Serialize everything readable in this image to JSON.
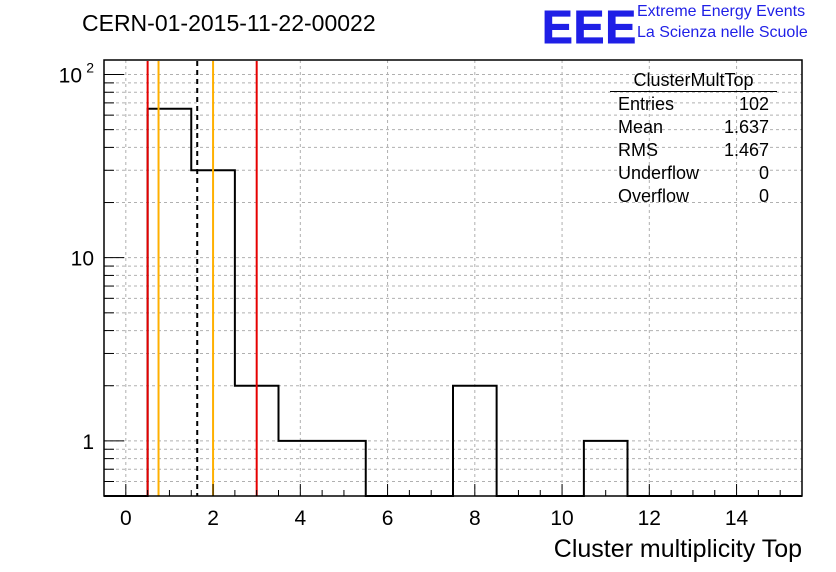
{
  "title": "CERN-01-2015-11-22-00022",
  "logo": {
    "letters": "EEE",
    "line1": "Extreme Energy Events",
    "line2": "La Scienza nelle Scuole",
    "color": "#1f1fe6"
  },
  "stats_box": {
    "name": "ClusterMultTop",
    "rows": [
      {
        "label": "Entries",
        "value": "102"
      },
      {
        "label": "Mean",
        "value": "1.637"
      },
      {
        "label": "RMS",
        "value": "1.467"
      },
      {
        "label": "Underflow",
        "value": "0"
      },
      {
        "label": "Overflow",
        "value": "0"
      }
    ]
  },
  "chart_data": {
    "type": "histogram",
    "title": "CERN-01-2015-11-22-00022",
    "xlabel": "Cluster multiplicity Top",
    "ylabel": "",
    "y_scale": "log",
    "xlim": [
      -0.5,
      15.5
    ],
    "ylim": [
      0.5,
      120
    ],
    "x_ticks": [
      0,
      2,
      4,
      6,
      8,
      10,
      12,
      14
    ],
    "y_tick_labels": [
      {
        "value": 1,
        "label": "1"
      },
      {
        "value": 10,
        "label": "10"
      },
      {
        "value": 100,
        "label": "10",
        "sup": "2"
      }
    ],
    "grid": true,
    "legend": "top-right",
    "bin_width": 1,
    "bin_edges_start": -0.5,
    "bins": [
      {
        "center": 1,
        "count": 65
      },
      {
        "center": 2,
        "count": 30
      },
      {
        "center": 3,
        "count": 2
      },
      {
        "center": 4,
        "count": 1
      },
      {
        "center": 5,
        "count": 1
      },
      {
        "center": 8,
        "count": 2
      },
      {
        "center": 11,
        "count": 1
      }
    ],
    "vertical_lines": [
      {
        "x": 0.5,
        "color": "#e60000",
        "style": "solid"
      },
      {
        "x": 0.75,
        "color": "#ffb000",
        "style": "solid"
      },
      {
        "x": 1.637,
        "color": "#000000",
        "style": "dashed"
      },
      {
        "x": 2.0,
        "color": "#ffb000",
        "style": "solid"
      },
      {
        "x": 3.0,
        "color": "#e60000",
        "style": "solid"
      }
    ]
  }
}
